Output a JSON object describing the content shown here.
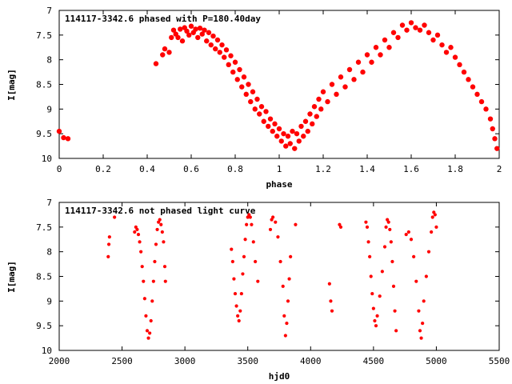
{
  "chart_data": [
    {
      "type": "scatter",
      "title": "114117-3342.6 phased with P=180.40day",
      "xlabel": "phase",
      "ylabel": "I[mag]",
      "xlim": [
        0,
        2
      ],
      "ylim": [
        10,
        7
      ],
      "y_inverted": true,
      "grid": false,
      "marker": "filled circle",
      "color": "#ff0000",
      "xticks": [
        "0",
        "0.2",
        "0.4",
        "0.6",
        "0.8",
        "1",
        "1.2",
        "1.4",
        "1.6",
        "1.8",
        "2"
      ],
      "yticks": [
        "7",
        "7.5",
        "8",
        "8.5",
        "9",
        "9.5",
        "10"
      ],
      "series": [
        {
          "points": [
            [
              0.0,
              9.45
            ],
            [
              0.02,
              9.58
            ],
            [
              0.04,
              9.6
            ],
            [
              0.44,
              8.08
            ],
            [
              0.47,
              7.9
            ],
            [
              0.48,
              7.78
            ],
            [
              0.5,
              7.85
            ],
            [
              0.51,
              7.55
            ],
            [
              0.52,
              7.4
            ],
            [
              0.53,
              7.48
            ],
            [
              0.54,
              7.55
            ],
            [
              0.55,
              7.38
            ],
            [
              0.56,
              7.62
            ],
            [
              0.57,
              7.35
            ],
            [
              0.58,
              7.42
            ],
            [
              0.59,
              7.5
            ],
            [
              0.6,
              7.32
            ],
            [
              0.61,
              7.45
            ],
            [
              0.62,
              7.38
            ],
            [
              0.63,
              7.55
            ],
            [
              0.64,
              7.36
            ],
            [
              0.65,
              7.48
            ],
            [
              0.66,
              7.4
            ],
            [
              0.67,
              7.62
            ],
            [
              0.68,
              7.45
            ],
            [
              0.69,
              7.7
            ],
            [
              0.7,
              7.52
            ],
            [
              0.71,
              7.78
            ],
            [
              0.72,
              7.6
            ],
            [
              0.73,
              7.85
            ],
            [
              0.74,
              7.7
            ],
            [
              0.75,
              7.95
            ],
            [
              0.76,
              7.8
            ],
            [
              0.77,
              8.1
            ],
            [
              0.78,
              7.92
            ],
            [
              0.79,
              8.25
            ],
            [
              0.8,
              8.05
            ],
            [
              0.81,
              8.4
            ],
            [
              0.82,
              8.2
            ],
            [
              0.83,
              8.55
            ],
            [
              0.84,
              8.35
            ],
            [
              0.85,
              8.7
            ],
            [
              0.86,
              8.5
            ],
            [
              0.87,
              8.85
            ],
            [
              0.88,
              8.65
            ],
            [
              0.89,
              9.0
            ],
            [
              0.9,
              8.8
            ],
            [
              0.91,
              9.1
            ],
            [
              0.92,
              8.95
            ],
            [
              0.93,
              9.25
            ],
            [
              0.94,
              9.05
            ],
            [
              0.95,
              9.35
            ],
            [
              0.96,
              9.2
            ],
            [
              0.97,
              9.45
            ],
            [
              0.98,
              9.3
            ],
            [
              0.99,
              9.55
            ],
            [
              1.0,
              9.4
            ],
            [
              1.01,
              9.65
            ],
            [
              1.02,
              9.5
            ],
            [
              1.03,
              9.75
            ],
            [
              1.04,
              9.55
            ],
            [
              1.05,
              9.7
            ],
            [
              1.06,
              9.45
            ],
            [
              1.07,
              9.8
            ],
            [
              1.08,
              9.5
            ],
            [
              1.09,
              9.65
            ],
            [
              1.1,
              9.35
            ],
            [
              1.11,
              9.55
            ],
            [
              1.12,
              9.25
            ],
            [
              1.13,
              9.45
            ],
            [
              1.14,
              9.1
            ],
            [
              1.15,
              9.3
            ],
            [
              1.16,
              8.95
            ],
            [
              1.17,
              9.15
            ],
            [
              1.18,
              8.8
            ],
            [
              1.19,
              9.0
            ],
            [
              1.2,
              8.65
            ],
            [
              1.22,
              8.85
            ],
            [
              1.24,
              8.5
            ],
            [
              1.26,
              8.7
            ],
            [
              1.28,
              8.35
            ],
            [
              1.3,
              8.55
            ],
            [
              1.32,
              8.2
            ],
            [
              1.34,
              8.4
            ],
            [
              1.36,
              8.05
            ],
            [
              1.38,
              8.25
            ],
            [
              1.4,
              7.9
            ],
            [
              1.42,
              8.05
            ],
            [
              1.44,
              7.75
            ],
            [
              1.46,
              7.9
            ],
            [
              1.48,
              7.6
            ],
            [
              1.5,
              7.75
            ],
            [
              1.52,
              7.45
            ],
            [
              1.54,
              7.55
            ],
            [
              1.56,
              7.3
            ],
            [
              1.58,
              7.4
            ],
            [
              1.6,
              7.25
            ],
            [
              1.62,
              7.35
            ],
            [
              1.64,
              7.4
            ],
            [
              1.66,
              7.3
            ],
            [
              1.68,
              7.45
            ],
            [
              1.7,
              7.6
            ],
            [
              1.72,
              7.5
            ],
            [
              1.74,
              7.7
            ],
            [
              1.76,
              7.85
            ],
            [
              1.78,
              7.75
            ],
            [
              1.8,
              7.95
            ],
            [
              1.82,
              8.1
            ],
            [
              1.84,
              8.25
            ],
            [
              1.86,
              8.4
            ],
            [
              1.88,
              8.55
            ],
            [
              1.9,
              8.7
            ],
            [
              1.92,
              8.85
            ],
            [
              1.94,
              9.0
            ],
            [
              1.96,
              9.2
            ],
            [
              1.97,
              9.4
            ],
            [
              1.98,
              9.6
            ],
            [
              1.99,
              9.8
            ]
          ]
        }
      ]
    },
    {
      "type": "scatter",
      "title": "114117-3342.6 not phased light curve",
      "xlabel": "hjd0",
      "ylabel": "I[mag]",
      "xlim": [
        2000,
        5500
      ],
      "ylim": [
        10,
        7
      ],
      "y_inverted": true,
      "grid": false,
      "marker": "filled circle",
      "color": "#ff0000",
      "xticks": [
        "2000",
        "2500",
        "3000",
        "3500",
        "4000",
        "4500",
        "5000",
        "5500"
      ],
      "yticks": [
        "7",
        "7.5",
        "8",
        "8.5",
        "9",
        "9.5",
        "10"
      ],
      "series": [
        {
          "points": [
            [
              2390,
              8.1
            ],
            [
              2395,
              7.85
            ],
            [
              2400,
              7.7
            ],
            [
              2440,
              7.3
            ],
            [
              2600,
              7.6
            ],
            [
              2610,
              7.5
            ],
            [
              2620,
              7.55
            ],
            [
              2630,
              7.65
            ],
            [
              2640,
              7.8
            ],
            [
              2650,
              8.0
            ],
            [
              2660,
              8.3
            ],
            [
              2670,
              8.6
            ],
            [
              2680,
              8.95
            ],
            [
              2690,
              9.3
            ],
            [
              2700,
              9.6
            ],
            [
              2710,
              9.75
            ],
            [
              2720,
              9.65
            ],
            [
              2730,
              9.4
            ],
            [
              2740,
              9.0
            ],
            [
              2750,
              8.6
            ],
            [
              2760,
              8.2
            ],
            [
              2770,
              7.85
            ],
            [
              2780,
              7.55
            ],
            [
              2790,
              7.4
            ],
            [
              2800,
              7.35
            ],
            [
              2810,
              7.45
            ],
            [
              2820,
              7.6
            ],
            [
              2830,
              7.8
            ],
            [
              2840,
              8.3
            ],
            [
              2845,
              8.6
            ],
            [
              3370,
              7.95
            ],
            [
              3380,
              8.2
            ],
            [
              3390,
              8.55
            ],
            [
              3400,
              8.85
            ],
            [
              3410,
              9.1
            ],
            [
              3420,
              9.3
            ],
            [
              3430,
              9.4
            ],
            [
              3440,
              9.2
            ],
            [
              3450,
              8.85
            ],
            [
              3460,
              8.45
            ],
            [
              3470,
              8.1
            ],
            [
              3480,
              7.75
            ],
            [
              3490,
              7.45
            ],
            [
              3500,
              7.3
            ],
            [
              3510,
              7.25
            ],
            [
              3520,
              7.3
            ],
            [
              3530,
              7.45
            ],
            [
              3545,
              7.8
            ],
            [
              3560,
              8.2
            ],
            [
              3580,
              8.6
            ],
            [
              3680,
              7.55
            ],
            [
              3690,
              7.35
            ],
            [
              3700,
              7.3
            ],
            [
              3720,
              7.4
            ],
            [
              3740,
              7.7
            ],
            [
              3760,
              8.2
            ],
            [
              3780,
              8.7
            ],
            [
              3790,
              9.3
            ],
            [
              3800,
              9.7
            ],
            [
              3810,
              9.45
            ],
            [
              3820,
              9.0
            ],
            [
              3830,
              8.55
            ],
            [
              3840,
              8.1
            ],
            [
              3880,
              7.45
            ],
            [
              4150,
              8.65
            ],
            [
              4160,
              9.0
            ],
            [
              4170,
              9.2
            ],
            [
              4230,
              7.45
            ],
            [
              4240,
              7.5
            ],
            [
              4440,
              7.4
            ],
            [
              4450,
              7.5
            ],
            [
              4460,
              7.8
            ],
            [
              4470,
              8.1
            ],
            [
              4480,
              8.5
            ],
            [
              4490,
              8.85
            ],
            [
              4500,
              9.15
            ],
            [
              4510,
              9.4
            ],
            [
              4520,
              9.5
            ],
            [
              4530,
              9.3
            ],
            [
              4550,
              8.9
            ],
            [
              4570,
              8.4
            ],
            [
              4590,
              7.9
            ],
            [
              4600,
              7.5
            ],
            [
              4610,
              7.35
            ],
            [
              4620,
              7.4
            ],
            [
              4630,
              7.55
            ],
            [
              4640,
              7.8
            ],
            [
              4650,
              8.2
            ],
            [
              4660,
              8.7
            ],
            [
              4670,
              9.2
            ],
            [
              4680,
              9.6
            ],
            [
              4760,
              7.65
            ],
            [
              4780,
              7.6
            ],
            [
              4800,
              7.75
            ],
            [
              4820,
              8.1
            ],
            [
              4840,
              8.6
            ],
            [
              4860,
              9.2
            ],
            [
              4870,
              9.6
            ],
            [
              4880,
              9.75
            ],
            [
              4890,
              9.45
            ],
            [
              4900,
              9.0
            ],
            [
              4920,
              8.5
            ],
            [
              4940,
              8.0
            ],
            [
              4960,
              7.6
            ],
            [
              4970,
              7.3
            ],
            [
              4980,
              7.2
            ],
            [
              4990,
              7.25
            ],
            [
              5000,
              7.5
            ]
          ]
        }
      ]
    }
  ]
}
